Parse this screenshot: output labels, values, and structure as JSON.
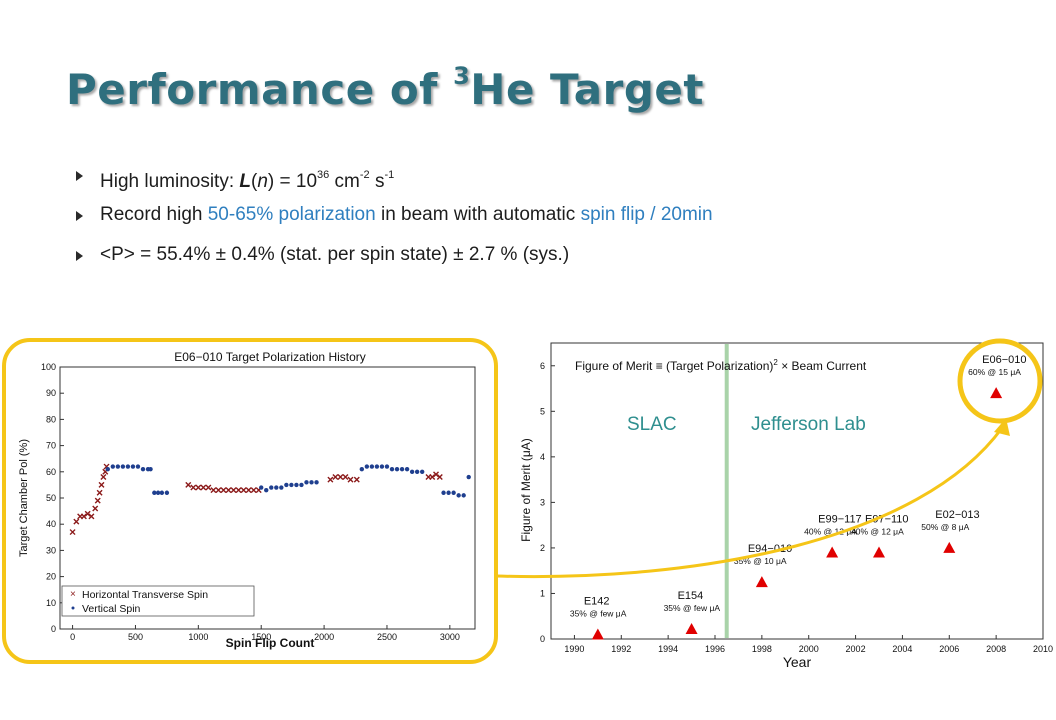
{
  "slide": {
    "title_pre": "Performance of ",
    "title_sup": "3",
    "title_post": "He Target",
    "bullets": {
      "b1": {
        "pre": "High luminosity: ",
        "L": "L",
        "paren_open": "(",
        "n": "n",
        "paren_close": ") = 10",
        "exp1": "36",
        "cm": " cm",
        "exp2": "-2",
        "s": " s",
        "exp3": "-1"
      },
      "b2": {
        "pre": "Record high ",
        "hl1": "50-65% polarization",
        "mid": " in beam with automatic ",
        "hl2": "spin flip / 20min"
      },
      "b3": {
        "text": "<P> = 55.4% ± 0.4% (stat. per spin state) ± 2.7 % (sys.)"
      }
    },
    "colors": {
      "title": "#2f6f7e",
      "highlight": "#2f7fbf",
      "frame": "#f5c518",
      "arrow": "#f5c518"
    }
  },
  "chart_data": [
    {
      "type": "scatter",
      "title": "E06−010 Target Polarization History",
      "xlabel": "Spin Flip Count",
      "ylabel": "Target Chamber Pol (%)",
      "xlim": [
        -100,
        3200
      ],
      "ylim": [
        0,
        100
      ],
      "xticks": [
        "0",
        "500",
        "1000",
        "1500",
        "2000",
        "2500",
        "3000"
      ],
      "yticks": [
        "0",
        "10",
        "20",
        "30",
        "40",
        "50",
        "60",
        "70",
        "80",
        "90",
        "100"
      ],
      "grid": false,
      "legend_position": "bottom-left",
      "series": [
        {
          "name": "Horizontal Transverse Spin",
          "marker": "x",
          "color": "#8b1a1a",
          "x": [
            0,
            30,
            60,
            90,
            120,
            150,
            180,
            200,
            215,
            230,
            245,
            260,
            270,
            920,
            960,
            1000,
            1040,
            1080,
            1120,
            1160,
            1200,
            1240,
            1280,
            1320,
            1360,
            1400,
            1440,
            1480,
            2050,
            2090,
            2130,
            2170,
            2210,
            2260,
            2830,
            2860,
            2890,
            2920
          ],
          "y": [
            37,
            41,
            43,
            43,
            44,
            43,
            46,
            49,
            52,
            55,
            58,
            60,
            62,
            55,
            54,
            54,
            54,
            54,
            53,
            53,
            53,
            53,
            53,
            53,
            53,
            53,
            53,
            53,
            57,
            58,
            58,
            58,
            57,
            57,
            58,
            58,
            59,
            58
          ]
        },
        {
          "name": "Vertical Spin",
          "marker": "dot",
          "color": "#1f3f8f",
          "x": [
            280,
            320,
            360,
            400,
            440,
            480,
            520,
            560,
            600,
            620,
            650,
            680,
            710,
            750,
            1500,
            1540,
            1580,
            1620,
            1660,
            1700,
            1740,
            1780,
            1820,
            1860,
            1900,
            1940,
            2300,
            2340,
            2380,
            2420,
            2460,
            2500,
            2540,
            2580,
            2620,
            2660,
            2700,
            2740,
            2780,
            2950,
            2990,
            3030,
            3070,
            3110,
            3150
          ],
          "y": [
            61,
            62,
            62,
            62,
            62,
            62,
            62,
            61,
            61,
            61,
            52,
            52,
            52,
            52,
            54,
            53,
            54,
            54,
            54,
            55,
            55,
            55,
            55,
            56,
            56,
            56,
            61,
            62,
            62,
            62,
            62,
            62,
            61,
            61,
            61,
            61,
            60,
            60,
            60,
            52,
            52,
            52,
            51,
            51,
            58
          ]
        }
      ]
    },
    {
      "type": "scatter",
      "title": "",
      "annotation": "Figure of Merit ≡ (Target Polarization)",
      "annotation_sup": "2",
      "annotation_post": " × Beam Current",
      "xlabel": "Year",
      "ylabel": "Figure of Merit (μA)",
      "xlim": [
        1989,
        2010
      ],
      "ylim": [
        0,
        6.5
      ],
      "xticks": [
        "1990",
        "1992",
        "1994",
        "1996",
        "1998",
        "2000",
        "2002",
        "2004",
        "2006",
        "2008",
        "2010"
      ],
      "yticks": [
        "0",
        "1",
        "2",
        "3",
        "4",
        "5",
        "6"
      ],
      "divider_year": 1996.5,
      "region_labels": [
        "SLAC",
        "Jefferson Lab"
      ],
      "series": [
        {
          "name": "",
          "marker": "triangle",
          "color": "#e00000",
          "points": [
            {
              "x": 1991,
              "y": 0.1,
              "label": "E142",
              "sub": "35% @ few μA"
            },
            {
              "x": 1995,
              "y": 0.22,
              "label": "E154",
              "sub": "35% @ few μA"
            },
            {
              "x": 1998,
              "y": 1.25,
              "label": "E94−010",
              "sub": "35% @ 10 μA"
            },
            {
              "x": 2001,
              "y": 1.9,
              "label": "E99−117",
              "sub": "40% @ 12 μA"
            },
            {
              "x": 2003,
              "y": 1.9,
              "label": "E97−110",
              "sub": "40% @ 12 μA"
            },
            {
              "x": 2006,
              "y": 2.0,
              "label": "E02−013",
              "sub": "50% @ 8 μA"
            },
            {
              "x": 2008,
              "y": 5.4,
              "label": "E06−010",
              "sub": "60% @ 15 μA"
            }
          ]
        }
      ]
    }
  ]
}
